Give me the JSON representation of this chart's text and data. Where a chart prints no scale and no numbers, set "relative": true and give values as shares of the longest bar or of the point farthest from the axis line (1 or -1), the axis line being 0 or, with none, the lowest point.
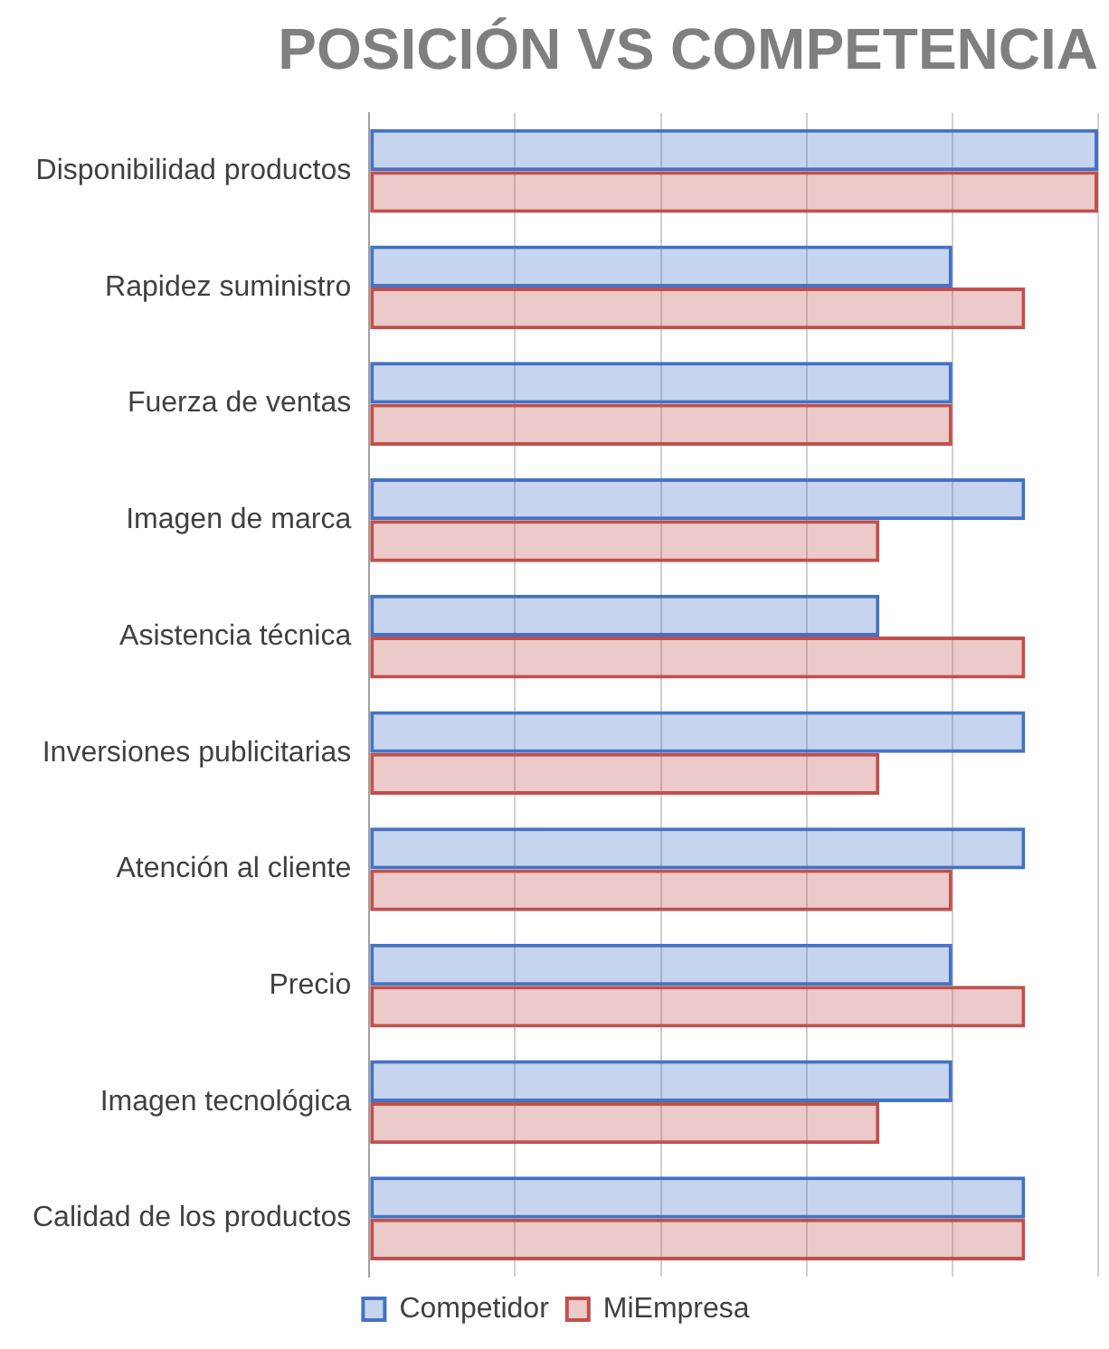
{
  "chart_data": {
    "type": "bar",
    "orientation": "horizontal",
    "relative": true,
    "title": "POSICIÓN VS COMPETENCIA",
    "categories": [
      "Disponibilidad productos",
      "Rapidez suministro",
      "Fuerza de ventas",
      "Imagen de marca",
      "Asistencia técnica",
      "Inversiones publicitarias",
      "Atención al cliente",
      "Precio",
      "Imagen tecnológica",
      "Calidad de los productos"
    ],
    "series": [
      {
        "name": "Competidor",
        "color": "#4472c4",
        "values": [
          1,
          0.8,
          0.8,
          0.9,
          0.7,
          0.9,
          0.9,
          0.8,
          0.8,
          0.9
        ]
      },
      {
        "name": "MiEmpresa",
        "color": "#c0504d",
        "values": [
          1,
          0.9,
          0.8,
          0.7,
          0.9,
          0.7,
          0.8,
          0.9,
          0.7,
          0.9
        ]
      }
    ],
    "grid": "x",
    "legend": "bottom"
  }
}
